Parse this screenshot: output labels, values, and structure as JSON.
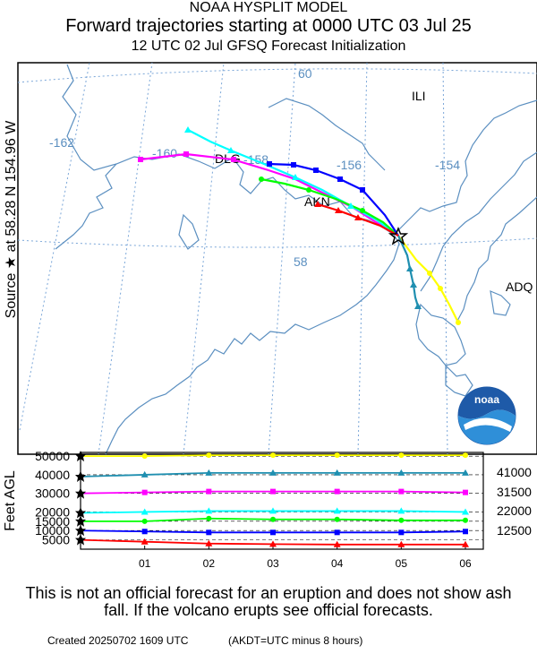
{
  "header": {
    "line1": "NOAA HYSPLIT MODEL",
    "line2": "Forward trajectories starting at 0000 UTC 03 Jul 25",
    "line3": "12 UTC 02 Jul    GFSQ  Forecast Initialization"
  },
  "side_label": "Source ★  at   58.28 N  154.96 W",
  "map": {
    "longitude_labels": [
      "-162",
      "-160",
      "-158",
      "-156",
      "-154"
    ],
    "latitude_labels": [
      "60",
      "58"
    ],
    "places": [
      "DLG",
      "AKN",
      "ILI",
      "ADQ"
    ],
    "logo_text": "noaa",
    "colors": {
      "coast": "#5b8fc0",
      "grid": "#7aa6d8"
    }
  },
  "height_panel": {
    "y_axis_title": "Feet AGL",
    "y_ticks": [
      "50000",
      "40000",
      "30000",
      "20000",
      "15000",
      "10000",
      "5000"
    ],
    "x_ticks": [
      "01",
      "02",
      "03",
      "04",
      "05",
      "06"
    ],
    "right_labels": [
      "41000",
      "31500",
      "22000",
      "12500"
    ]
  },
  "chart_data": {
    "type": "line",
    "title": "Forward trajectories starting at 0000 UTC 03 Jul 25",
    "xlabel": "",
    "ylabel": "Feet AGL",
    "x": [
      "00",
      "01",
      "02",
      "03",
      "04",
      "05",
      "06"
    ],
    "ylim": [
      0,
      52000
    ],
    "series": [
      {
        "color": "#ffff00",
        "values": [
          50000,
          50000,
          50500,
          50500,
          50500,
          50500,
          50500
        ]
      },
      {
        "color": "#1f8fb0",
        "values": [
          39000,
          40000,
          41000,
          41000,
          41000,
          41000,
          41000
        ]
      },
      {
        "color": "#ff00ff",
        "values": [
          30000,
          30500,
          31000,
          31000,
          31000,
          31000,
          30500
        ]
      },
      {
        "color": "#00ffff",
        "values": [
          19500,
          20000,
          20500,
          20500,
          20500,
          20500,
          20000
        ]
      },
      {
        "color": "#00ff00",
        "values": [
          15000,
          15000,
          16500,
          16000,
          16000,
          15500,
          15500
        ]
      },
      {
        "color": "#0000ff",
        "values": [
          10000,
          9500,
          9000,
          9000,
          9000,
          9000,
          9500
        ]
      },
      {
        "color": "#ff0000",
        "values": [
          5000,
          4000,
          3000,
          2700,
          2500,
          2500,
          2500
        ]
      }
    ]
  },
  "footer": {
    "disclaimer": "This is not an official forecast for an eruption and does not show ash fall. If the volcano erupts see official forecasts.",
    "created": "Created 20250702 1609 UTC",
    "akdt": "(AKDT=UTC minus 8 hours)"
  }
}
